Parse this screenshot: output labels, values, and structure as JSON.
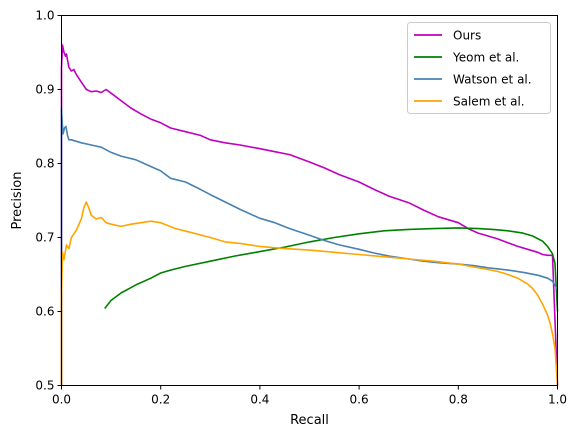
{
  "chart_data": {
    "type": "line",
    "title": "",
    "xlabel": "Recall",
    "ylabel": "Precision",
    "xlim": [
      0.0,
      1.0
    ],
    "ylim": [
      0.5,
      1.0
    ],
    "xticks": [
      "0.0",
      "0.2",
      "0.4",
      "0.6",
      "0.8",
      "1.0"
    ],
    "yticks": [
      "0.5",
      "0.6",
      "0.7",
      "0.8",
      "0.9",
      "1.0"
    ],
    "grid": false,
    "legend_position": "top-right",
    "series": [
      {
        "name": "Ours",
        "color": "#bf00bf",
        "x": [
          0.0,
          0.0,
          0.002,
          0.005,
          0.008,
          0.01,
          0.012,
          0.015,
          0.02,
          0.025,
          0.03,
          0.04,
          0.05,
          0.06,
          0.07,
          0.08,
          0.09,
          0.1,
          0.12,
          0.14,
          0.16,
          0.18,
          0.2,
          0.22,
          0.25,
          0.28,
          0.3,
          0.33,
          0.36,
          0.4,
          0.43,
          0.46,
          0.5,
          0.53,
          0.56,
          0.6,
          0.63,
          0.66,
          0.7,
          0.73,
          0.76,
          0.8,
          0.82,
          0.84,
          0.86,
          0.88,
          0.9,
          0.92,
          0.94,
          0.96,
          0.97,
          0.98,
          0.99,
          1.0
        ],
        "y": [
          0.5,
          0.93,
          0.96,
          0.95,
          0.945,
          0.948,
          0.94,
          0.93,
          0.925,
          0.927,
          0.92,
          0.91,
          0.9,
          0.897,
          0.898,
          0.896,
          0.9,
          0.895,
          0.885,
          0.875,
          0.867,
          0.86,
          0.855,
          0.848,
          0.843,
          0.838,
          0.832,
          0.828,
          0.825,
          0.82,
          0.816,
          0.812,
          0.802,
          0.794,
          0.785,
          0.775,
          0.765,
          0.756,
          0.747,
          0.737,
          0.728,
          0.72,
          0.712,
          0.706,
          0.702,
          0.698,
          0.693,
          0.688,
          0.684,
          0.68,
          0.677,
          0.676,
          0.676,
          0.5
        ]
      },
      {
        "name": "Yeom et al.",
        "color": "#008000",
        "x": [
          0.087,
          0.1,
          0.12,
          0.15,
          0.18,
          0.2,
          0.22,
          0.25,
          0.3,
          0.35,
          0.4,
          0.45,
          0.5,
          0.55,
          0.6,
          0.65,
          0.7,
          0.75,
          0.8,
          0.84,
          0.87,
          0.9,
          0.93,
          0.95,
          0.97,
          0.98,
          0.99,
          0.995,
          1.0
        ],
        "y": [
          0.604,
          0.615,
          0.625,
          0.636,
          0.645,
          0.652,
          0.656,
          0.661,
          0.668,
          0.675,
          0.681,
          0.687,
          0.694,
          0.7,
          0.705,
          0.709,
          0.711,
          0.712,
          0.713,
          0.712,
          0.711,
          0.709,
          0.706,
          0.702,
          0.695,
          0.688,
          0.678,
          0.665,
          0.6
        ]
      },
      {
        "name": "Watson et al.",
        "color": "#4682b4",
        "x": [
          0.0,
          0.0,
          0.001,
          0.003,
          0.006,
          0.009,
          0.012,
          0.015,
          0.02,
          0.03,
          0.04,
          0.06,
          0.08,
          0.1,
          0.12,
          0.15,
          0.18,
          0.2,
          0.22,
          0.25,
          0.28,
          0.3,
          0.33,
          0.36,
          0.4,
          0.43,
          0.46,
          0.5,
          0.53,
          0.56,
          0.6,
          0.63,
          0.66,
          0.7,
          0.73,
          0.76,
          0.8,
          0.83,
          0.86,
          0.9,
          0.93,
          0.96,
          0.98,
          0.99,
          1.0
        ],
        "y": [
          0.5,
          0.875,
          0.86,
          0.84,
          0.848,
          0.85,
          0.838,
          0.832,
          0.832,
          0.83,
          0.828,
          0.825,
          0.822,
          0.815,
          0.81,
          0.805,
          0.796,
          0.79,
          0.78,
          0.775,
          0.765,
          0.758,
          0.748,
          0.738,
          0.726,
          0.72,
          0.712,
          0.703,
          0.696,
          0.69,
          0.684,
          0.679,
          0.675,
          0.671,
          0.668,
          0.666,
          0.664,
          0.662,
          0.659,
          0.656,
          0.653,
          0.649,
          0.645,
          0.641,
          0.63
        ]
      },
      {
        "name": "Salem et al.",
        "color": "#ffa500",
        "x": [
          0.0,
          0.0,
          0.002,
          0.005,
          0.01,
          0.015,
          0.02,
          0.03,
          0.04,
          0.045,
          0.05,
          0.055,
          0.06,
          0.07,
          0.08,
          0.09,
          0.1,
          0.12,
          0.14,
          0.16,
          0.18,
          0.2,
          0.23,
          0.26,
          0.3,
          0.33,
          0.36,
          0.4,
          0.45,
          0.5,
          0.55,
          0.6,
          0.65,
          0.7,
          0.75,
          0.8,
          0.85,
          0.88,
          0.9,
          0.92,
          0.94,
          0.95,
          0.96,
          0.97,
          0.98,
          0.985,
          0.99,
          0.995,
          1.0
        ],
        "y": [
          0.5,
          0.62,
          0.68,
          0.67,
          0.69,
          0.685,
          0.7,
          0.71,
          0.725,
          0.74,
          0.748,
          0.74,
          0.73,
          0.725,
          0.727,
          0.72,
          0.718,
          0.715,
          0.718,
          0.72,
          0.722,
          0.72,
          0.712,
          0.707,
          0.7,
          0.694,
          0.692,
          0.688,
          0.685,
          0.683,
          0.68,
          0.677,
          0.674,
          0.671,
          0.668,
          0.664,
          0.658,
          0.654,
          0.65,
          0.645,
          0.637,
          0.631,
          0.622,
          0.61,
          0.595,
          0.584,
          0.57,
          0.55,
          0.5
        ]
      }
    ]
  }
}
